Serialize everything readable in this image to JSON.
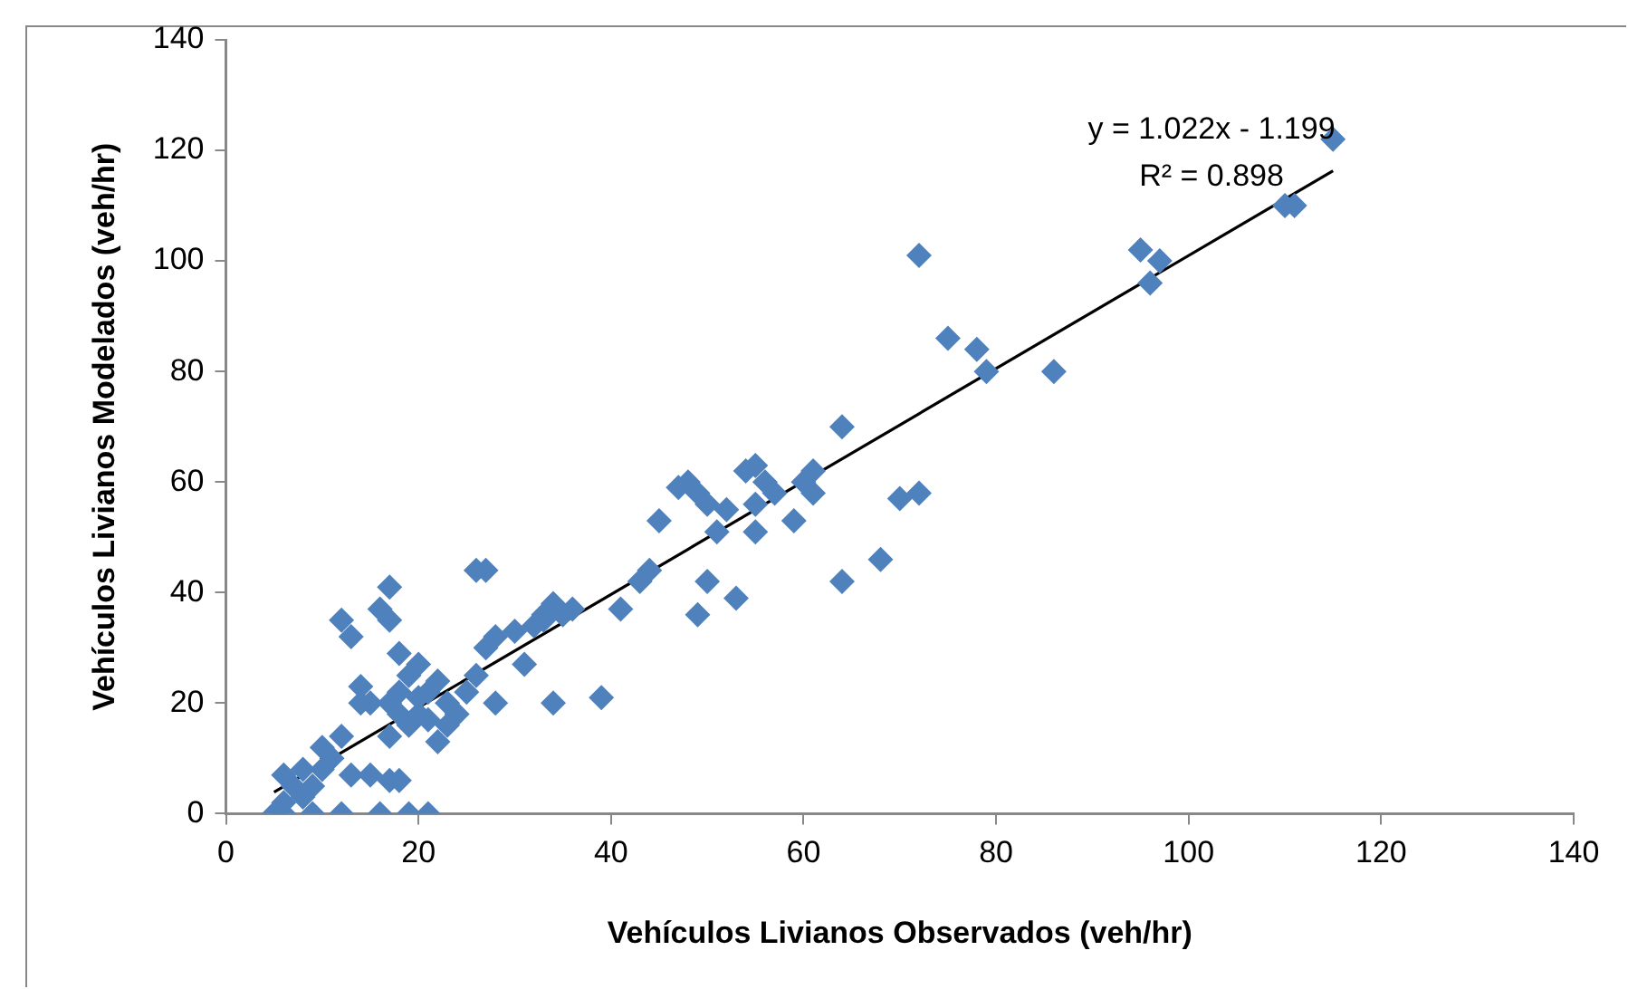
{
  "chart_data": {
    "type": "scatter",
    "xlabel": "Vehículos Livianos Observados (veh/hr)",
    "ylabel": "Vehículos Livianos Modelados (veh/hr)",
    "xlim": [
      0,
      140
    ],
    "xticks": [
      0,
      20,
      40,
      60,
      80,
      100,
      120,
      140
    ],
    "ylim": [
      0,
      140
    ],
    "yticks": [
      0,
      20,
      40,
      60,
      80,
      100,
      120,
      140
    ],
    "marker": "diamond",
    "legend": false,
    "annotations": [
      "y = 1.022x - 1.199",
      "R² = 0.898"
    ],
    "series": [
      {
        "color": "#4f81bd",
        "x": [
          115,
          110,
          111,
          95,
          96,
          97,
          72,
          75,
          78,
          79,
          86,
          64,
          72,
          70,
          68,
          64,
          61,
          60,
          61,
          59,
          55,
          54,
          56,
          55,
          55,
          57,
          52,
          51,
          50,
          49,
          48,
          47,
          50,
          49,
          53,
          45,
          44,
          43,
          41,
          39,
          36,
          35,
          34,
          33,
          32,
          31,
          34,
          28,
          27,
          26,
          27,
          28,
          26,
          25,
          23,
          23,
          22,
          22,
          21,
          20,
          21,
          19,
          20,
          19,
          18,
          18,
          17,
          17,
          16,
          17,
          17,
          18,
          17,
          16,
          15,
          14,
          14,
          13,
          12,
          12,
          11,
          10,
          10,
          9,
          8,
          8,
          7,
          6,
          6,
          5,
          6,
          9,
          12,
          13,
          15,
          19,
          24,
          30,
          33,
          18,
          20,
          21
        ],
        "values": [
          122,
          110,
          110,
          102,
          96,
          100,
          101,
          86,
          84,
          80,
          80,
          70,
          58,
          57,
          46,
          42,
          62,
          60,
          58,
          53,
          63,
          62,
          60,
          56,
          51,
          58,
          55,
          51,
          56,
          58,
          60,
          59,
          42,
          36,
          39,
          53,
          44,
          42,
          37,
          21,
          37,
          36,
          38,
          35,
          34,
          27,
          20,
          32,
          44,
          44,
          30,
          20,
          25,
          22,
          20,
          16,
          13,
          24,
          17,
          21,
          0,
          0,
          27,
          25,
          29,
          22,
          35,
          41,
          37,
          20,
          14,
          6,
          6,
          0,
          20,
          23,
          20,
          32,
          35,
          14,
          10,
          12,
          8,
          5,
          3,
          8,
          5,
          7,
          2,
          0,
          0,
          0,
          0,
          7,
          7,
          16,
          18,
          33,
          36,
          18,
          18,
          22
        ]
      },
      {
        "type": "line",
        "color": "#000000",
        "marker": "none",
        "x": [
          5,
          115
        ],
        "values": [
          3.9,
          116.3
        ]
      }
    ]
  }
}
